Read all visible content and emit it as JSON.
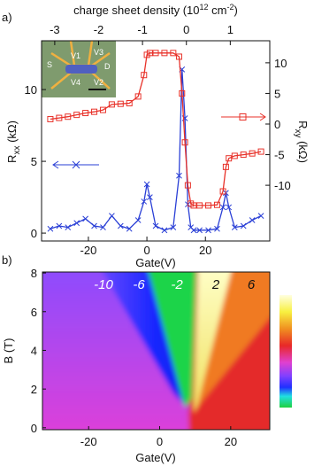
{
  "chart_data": [
    {
      "type": "line",
      "panel": "a)",
      "xlabel": "Gate(V)",
      "ylabel": {
        "main": "R",
        "sub": "xx",
        "unit": " (kΩ)"
      },
      "y2label": {
        "main": "R",
        "sub": "xy",
        "unit": " (kΩ)"
      },
      "x2label": {
        "text": "charge sheet density (10",
        "sup1": "12",
        "mid": " cm",
        "sup2": "-2",
        "end": ")"
      },
      "inset_labels": [
        "S",
        "V1",
        "V3",
        "V4",
        "V2",
        "D"
      ],
      "x": [
        -33,
        -30,
        -27,
        -24,
        -21,
        -18,
        -15,
        -12,
        -9,
        -6,
        -3,
        -1,
        0,
        1,
        3,
        6,
        9,
        11,
        12,
        13,
        14,
        15,
        16,
        18,
        21,
        24,
        26,
        27,
        28,
        30,
        33,
        36,
        39
      ],
      "series": [
        {
          "color": "#2a3fd6",
          "marker": "x",
          "axis": "y",
          "values": [
            0.3,
            0.5,
            0.4,
            0.7,
            1.0,
            0.5,
            0.4,
            1.2,
            0.5,
            0.3,
            0.9,
            2.2,
            3.4,
            2.5,
            0.5,
            0.2,
            0.4,
            4,
            11.4,
            8,
            2,
            0.4,
            0.2,
            0.2,
            0.2,
            0.3,
            1.8,
            2.8,
            1.8,
            0.4,
            0.5,
            0.9,
            1.2
          ]
        },
        {
          "color": "#e8322a",
          "marker": "square",
          "axis": "y2",
          "values": [
            0.8,
            1.0,
            1.2,
            1.5,
            1.8,
            2.0,
            2.3,
            3.2,
            3.3,
            3.4,
            4.5,
            8,
            11.3,
            11.6,
            11.6,
            11.6,
            11.6,
            11.0,
            5,
            -3,
            -10,
            -13,
            -13.3,
            -13.3,
            -13.3,
            -13.2,
            -11,
            -7,
            -5.6,
            -5.2,
            -5.0,
            -4.8,
            -4.5
          ]
        }
      ],
      "xlim": [
        -36,
        42
      ],
      "xticks": [
        -20,
        0,
        20
      ],
      "x2lim": [
        -3.3,
        1.9
      ],
      "x2ticks": [
        -3,
        -2,
        -1,
        0,
        1
      ],
      "ylim": [
        -0.55,
        13.4
      ],
      "yticks": [
        0,
        5,
        10
      ],
      "y2lim": [
        -19.1,
        13.6
      ],
      "y2ticks": [
        -10,
        -5,
        0,
        5,
        10
      ]
    },
    {
      "type": "heatmap",
      "panel": "b)",
      "xlabel": "Gate(V)",
      "ylabel": "B (T)",
      "xlim": [
        -33,
        31
      ],
      "xticks": [
        -20,
        0,
        20
      ],
      "ylim": [
        -0.1,
        8.05
      ],
      "yticks": [
        0,
        2,
        4,
        6,
        8
      ],
      "annotations": [
        "-10",
        "-6",
        "-2",
        "2",
        "6"
      ],
      "colorbar": true
    }
  ]
}
